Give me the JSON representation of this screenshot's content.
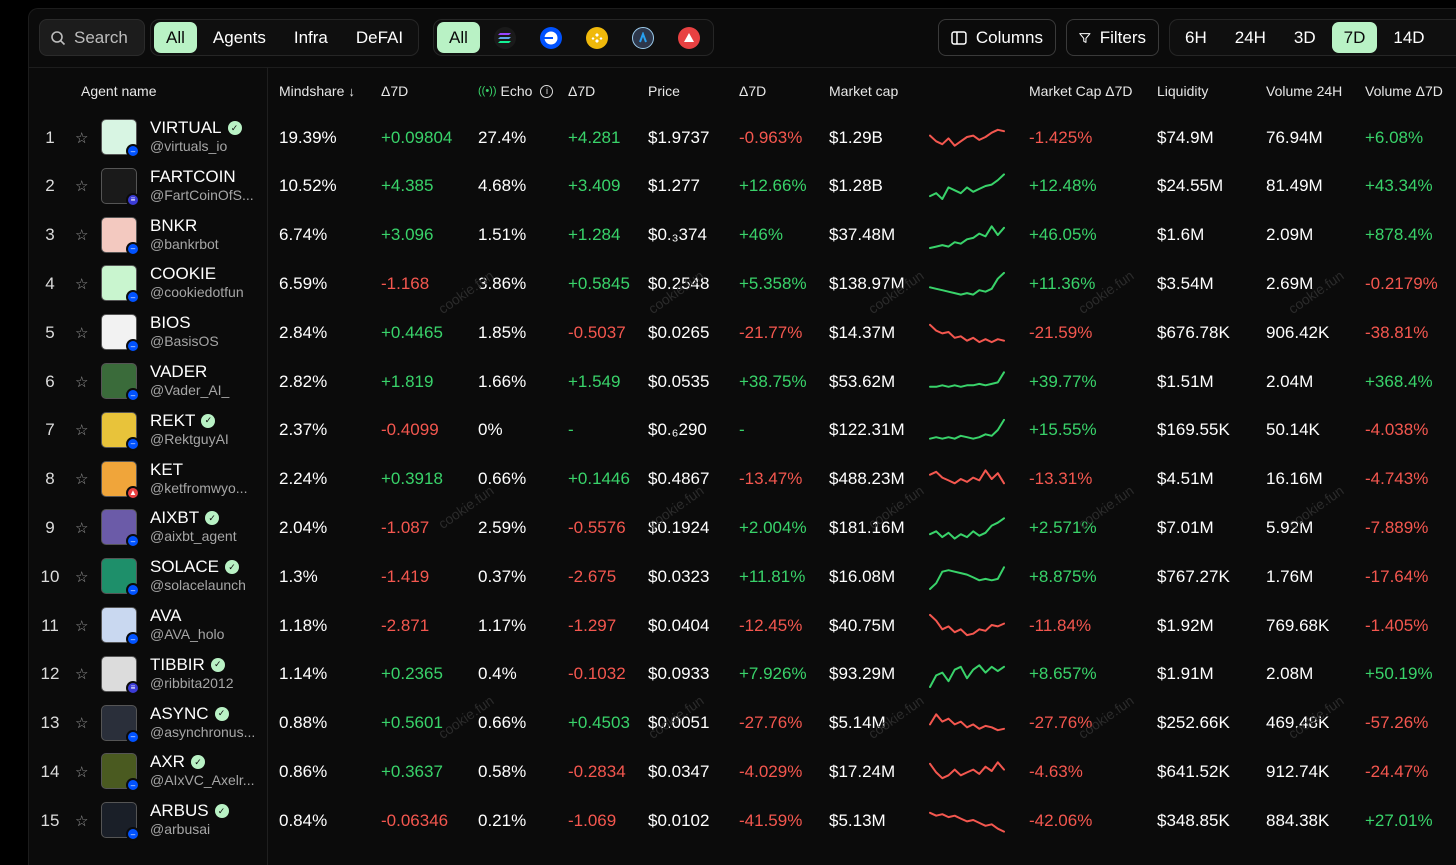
{
  "toolbar": {
    "search_label": "Search",
    "categories": [
      "All",
      "Agents",
      "Infra",
      "DeFAI"
    ],
    "chain_all": "All",
    "chains": [
      {
        "name": "solana-icon",
        "color": "#1a1a1a"
      },
      {
        "name": "base-icon",
        "color": "#0052ff"
      },
      {
        "name": "bnb-icon",
        "color": "#f0b90b"
      },
      {
        "name": "arbitrum-icon",
        "color": "#2d374b"
      },
      {
        "name": "avalanche-icon",
        "color": "#e84142"
      }
    ],
    "columns_label": "Columns",
    "filters_label": "Filters",
    "timeframes": [
      "6H",
      "24H",
      "3D",
      "7D",
      "14D"
    ],
    "active_timeframe": "7D"
  },
  "headers": {
    "agent_name": "Agent name",
    "mindshare": "Mindshare",
    "mindshare_d7": "Δ7D",
    "echo": "Echo",
    "echo_d7": "Δ7D",
    "price": "Price",
    "price_d7": "Δ7D",
    "market_cap": "Market cap",
    "market_cap_d7": "Market Cap Δ7D",
    "liquidity": "Liquidity",
    "volume_24h": "Volume 24H",
    "volume_d7": "Volume Δ7D"
  },
  "watermark": "cookie.fun",
  "colors": {
    "positive": "#39d36a",
    "negative": "#f4574f",
    "accent": "#b9f2c5"
  },
  "rows": [
    {
      "idx": "1",
      "name": "VIRTUAL",
      "verified": true,
      "handle": "@virtuals_io",
      "chain": "base",
      "avatar": "#d8f5e3",
      "mindshare": "19.39%",
      "ms_d": "+0.09804",
      "echo": "27.4%",
      "echo_d": "+4.281",
      "price": "$1.9737",
      "price_d": "-0.963%",
      "mcap": "$1.29B",
      "spark": [
        8,
        12,
        14,
        10,
        15,
        12,
        9,
        8,
        11,
        9,
        6,
        4,
        5
      ],
      "mcap_d": "-1.425%",
      "liq": "$74.9M",
      "vol": "76.94M",
      "vol_d": "+6.08%"
    },
    {
      "idx": "2",
      "name": "FARTCOIN",
      "verified": false,
      "handle": "@FartCoinOfS...",
      "chain": "solana",
      "avatar": "#1a1a1a",
      "mindshare": "10.52%",
      "ms_d": "+4.385",
      "echo": "4.68%",
      "echo_d": "+3.409",
      "price": "$1.277",
      "price_d": "+12.66%",
      "mcap": "$1.28B",
      "spark": [
        16,
        14,
        18,
        10,
        12,
        14,
        10,
        13,
        11,
        9,
        8,
        5,
        1
      ],
      "mcap_d": "+12.48%",
      "liq": "$24.55M",
      "vol": "81.49M",
      "vol_d": "+43.34%"
    },
    {
      "idx": "3",
      "name": "BNKR",
      "verified": false,
      "handle": "@bankrbot",
      "chain": "base",
      "avatar": "#f3c9c0",
      "mindshare": "6.74%",
      "ms_d": "+3.096",
      "echo": "1.51%",
      "echo_d": "+1.284",
      "price": "$0.₃374",
      "price_d": "+46%",
      "mcap": "$37.48M",
      "spark": [
        18,
        17,
        16,
        17,
        14,
        15,
        12,
        11,
        8,
        10,
        3,
        9,
        4
      ],
      "mcap_d": "+46.05%",
      "liq": "$1.6M",
      "vol": "2.09M",
      "vol_d": "+878.4%"
    },
    {
      "idx": "4",
      "name": "COOKIE",
      "verified": false,
      "handle": "@cookiedotfun",
      "chain": "base",
      "avatar": "#c9f5cf",
      "mindshare": "6.59%",
      "ms_d": "-1.168",
      "echo": "3.86%",
      "echo_d": "+0.5845",
      "price": "$0.2548",
      "price_d": "+5.358%",
      "mcap": "$138.97M",
      "spark": [
        12,
        13,
        14,
        15,
        16,
        17,
        16,
        17,
        14,
        15,
        13,
        6,
        2
      ],
      "mcap_d": "+11.36%",
      "liq": "$3.54M",
      "vol": "2.69M",
      "vol_d": "-0.2179%"
    },
    {
      "idx": "5",
      "name": "BIOS",
      "verified": false,
      "handle": "@BasisOS",
      "chain": "base",
      "avatar": "#f2f2f2",
      "mindshare": "2.84%",
      "ms_d": "+0.4465",
      "echo": "1.85%",
      "echo_d": "-0.5037",
      "price": "$0.0265",
      "price_d": "-21.77%",
      "mcap": "$14.37M",
      "spark": [
        4,
        8,
        10,
        9,
        13,
        12,
        15,
        13,
        16,
        14,
        16,
        14,
        15
      ],
      "mcap_d": "-21.59%",
      "liq": "$676.78K",
      "vol": "906.42K",
      "vol_d": "-38.81%"
    },
    {
      "idx": "6",
      "name": "VADER",
      "verified": false,
      "handle": "@Vader_AI_",
      "chain": "base",
      "avatar": "#3a6b3a",
      "mindshare": "2.82%",
      "ms_d": "+1.819",
      "echo": "1.66%",
      "echo_d": "+1.549",
      "price": "$0.0535",
      "price_d": "+38.75%",
      "mcap": "$53.62M",
      "spark": [
        13,
        13,
        12,
        13,
        12,
        13,
        12,
        12,
        11,
        12,
        11,
        10,
        3
      ],
      "mcap_d": "+39.77%",
      "liq": "$1.51M",
      "vol": "2.04M",
      "vol_d": "+368.4%"
    },
    {
      "idx": "7",
      "name": "REKT",
      "verified": true,
      "handle": "@RektguyAI",
      "chain": "base",
      "avatar": "#e8c33a",
      "mindshare": "2.37%",
      "ms_d": "-0.4099",
      "echo": "0%",
      "echo_d": "-",
      "price": "$0.₆290",
      "price_d": "-",
      "mcap": "$122.31M",
      "spark": [
        15,
        14,
        15,
        14,
        15,
        13,
        14,
        15,
        14,
        12,
        13,
        9,
        2
      ],
      "mcap_d": "+15.55%",
      "liq": "$169.55K",
      "vol": "50.14K",
      "vol_d": "-4.038%"
    },
    {
      "idx": "8",
      "name": "KET",
      "verified": false,
      "handle": "@ketfromwyo...",
      "chain": "avalanche",
      "avatar": "#f0a53a",
      "mindshare": "2.24%",
      "ms_d": "+0.3918",
      "echo": "0.66%",
      "echo_d": "+0.1446",
      "price": "$0.4867",
      "price_d": "-13.47%",
      "mcap": "$488.23M",
      "spark": [
        6,
        4,
        8,
        10,
        12,
        9,
        11,
        8,
        10,
        3,
        9,
        5,
        12
      ],
      "mcap_d": "-13.31%",
      "liq": "$4.51M",
      "vol": "16.16M",
      "vol_d": "-4.743%"
    },
    {
      "idx": "9",
      "name": "AIXBT",
      "verified": true,
      "handle": "@aixbt_agent",
      "chain": "base",
      "avatar": "#6b5ba8",
      "mindshare": "2.04%",
      "ms_d": "-1.087",
      "echo": "2.59%",
      "echo_d": "-0.5576",
      "price": "$0.1924",
      "price_d": "+2.004%",
      "mcap": "$181.16M",
      "spark": [
        14,
        12,
        16,
        13,
        17,
        14,
        16,
        12,
        15,
        13,
        8,
        6,
        3
      ],
      "mcap_d": "+2.571%",
      "liq": "$7.01M",
      "vol": "5.92M",
      "vol_d": "-7.889%"
    },
    {
      "idx": "10",
      "name": "SOLACE",
      "verified": true,
      "handle": "@solacelaunch",
      "chain": "base",
      "avatar": "#1e8f6a",
      "mindshare": "1.3%",
      "ms_d": "-1.419",
      "echo": "0.37%",
      "echo_d": "-2.675",
      "price": "$0.0323",
      "price_d": "+11.81%",
      "mcap": "$16.08M",
      "spark": [
        18,
        14,
        6,
        5,
        6,
        7,
        8,
        10,
        12,
        11,
        12,
        11,
        3
      ],
      "mcap_d": "+8.875%",
      "liq": "$767.27K",
      "vol": "1.76M",
      "vol_d": "-17.64%"
    },
    {
      "idx": "11",
      "name": "AVA",
      "verified": false,
      "handle": "@AVA_holo",
      "chain": "base",
      "avatar": "#c9d8f0",
      "mindshare": "1.18%",
      "ms_d": "-2.871",
      "echo": "1.17%",
      "echo_d": "-1.297",
      "price": "$0.0404",
      "price_d": "-12.45%",
      "mcap": "$40.75M",
      "spark": [
        2,
        6,
        12,
        10,
        14,
        12,
        16,
        15,
        12,
        13,
        9,
        10,
        8
      ],
      "mcap_d": "-11.84%",
      "liq": "$1.92M",
      "vol": "769.68K",
      "vol_d": "-1.405%"
    },
    {
      "idx": "12",
      "name": "TIBBIR",
      "verified": true,
      "handle": "@ribbita2012",
      "chain": "solana",
      "avatar": "#dcdcdc",
      "mindshare": "1.14%",
      "ms_d": "+0.2365",
      "echo": "0.4%",
      "echo_d": "-0.1032",
      "price": "$0.0933",
      "price_d": "+7.926%",
      "mcap": "$93.29M",
      "spark": [
        18,
        10,
        8,
        14,
        6,
        4,
        12,
        6,
        3,
        8,
        4,
        7,
        4
      ],
      "mcap_d": "+8.657%",
      "liq": "$1.91M",
      "vol": "2.08M",
      "vol_d": "+50.19%"
    },
    {
      "idx": "13",
      "name": "ASYNC",
      "verified": true,
      "handle": "@asynchronus...",
      "chain": "base",
      "avatar": "#2a2f3a",
      "mindshare": "0.88%",
      "ms_d": "+0.5601",
      "echo": "0.66%",
      "echo_d": "+0.4503",
      "price": "$0.0051",
      "price_d": "-27.76%",
      "mcap": "$5.14M",
      "spark": [
        10,
        3,
        8,
        6,
        10,
        8,
        12,
        10,
        13,
        11,
        12,
        14,
        13
      ],
      "mcap_d": "-27.76%",
      "liq": "$252.66K",
      "vol": "469.48K",
      "vol_d": "-57.26%"
    },
    {
      "idx": "14",
      "name": "AXR",
      "verified": true,
      "handle": "@AIxVC_Axelr...",
      "chain": "base",
      "avatar": "#4a5a20",
      "mindshare": "0.86%",
      "ms_d": "+0.3637",
      "echo": "0.58%",
      "echo_d": "-0.2834",
      "price": "$0.0347",
      "price_d": "-4.029%",
      "mcap": "$17.24M",
      "spark": [
        4,
        10,
        14,
        12,
        8,
        12,
        10,
        8,
        11,
        6,
        9,
        3,
        8
      ],
      "mcap_d": "-4.63%",
      "liq": "$641.52K",
      "vol": "912.74K",
      "vol_d": "-24.47%"
    },
    {
      "idx": "15",
      "name": "ARBUS",
      "verified": true,
      "handle": "@arbusai",
      "chain": "base",
      "avatar": "#1a1f28",
      "mindshare": "0.84%",
      "ms_d": "-0.06346",
      "echo": "0.21%",
      "echo_d": "-1.069",
      "price": "$0.0102",
      "price_d": "-41.59%",
      "mcap": "$5.13M",
      "spark": [
        4,
        6,
        5,
        7,
        6,
        8,
        10,
        9,
        11,
        13,
        12,
        15,
        17
      ],
      "mcap_d": "-42.06%",
      "liq": "$348.85K",
      "vol": "884.38K",
      "vol_d": "+27.01%"
    }
  ]
}
